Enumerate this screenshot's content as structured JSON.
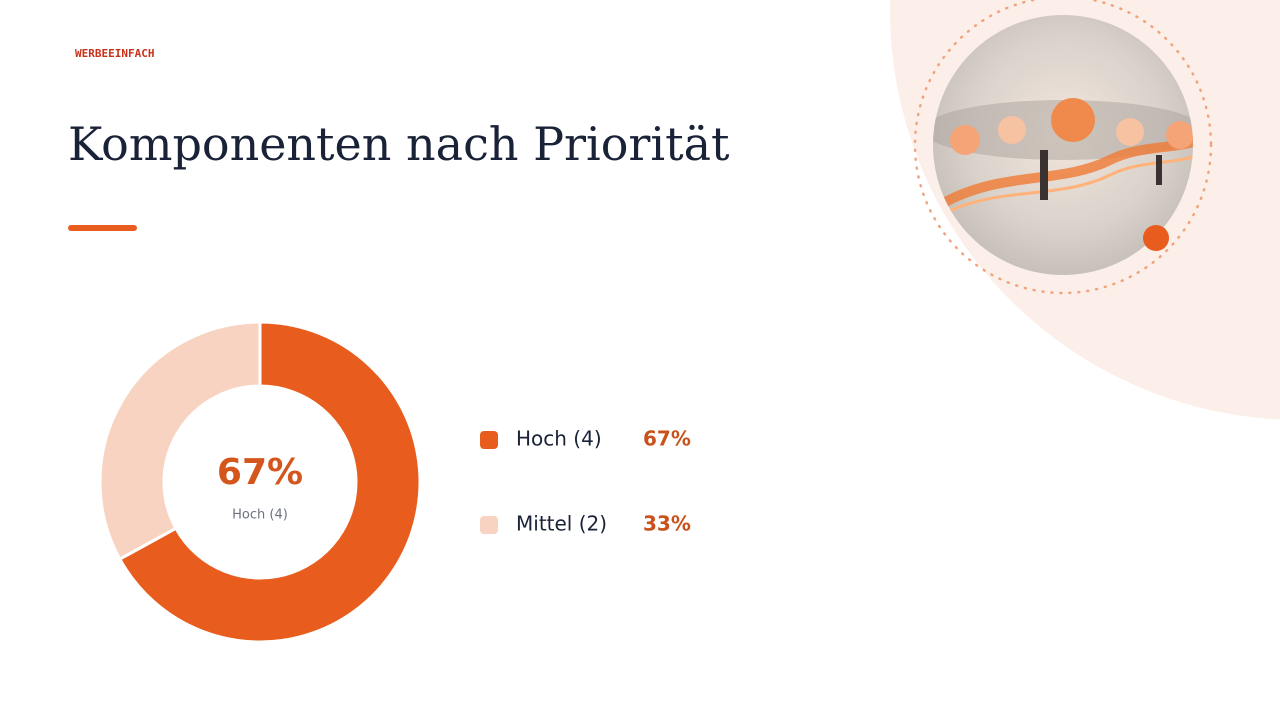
{
  "logo": "WERBEEINFACH",
  "chart_data": {
    "type": "pie",
    "donut": true,
    "title": "Komponenten nach Priorität",
    "categories": [
      "Hoch (4)",
      "Mittel (2)"
    ],
    "values": [
      67,
      33
    ],
    "value_labels": [
      "67%",
      "33%"
    ],
    "colors": [
      "#e85d1e",
      "#f8d3c2"
    ],
    "legend": "right"
  }
}
